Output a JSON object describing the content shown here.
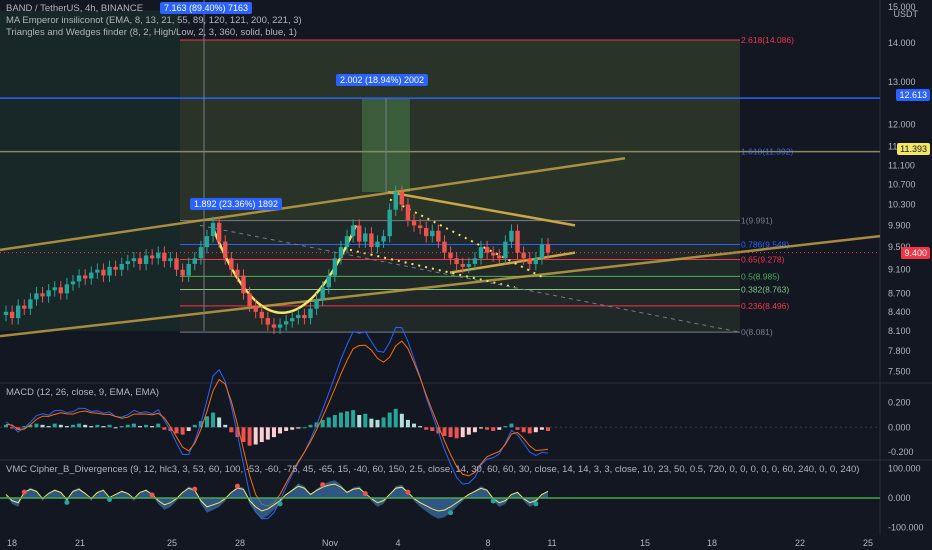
{
  "header": {
    "symbol": "BAND / TetherUS, 4h, BINANCE",
    "indicator_1": "MA Emperor insiliconot (EMA, 8, 13, 21, 55, 89, 120, 121, 200, 221, 3)",
    "indicator_2": "Triangles and Wedges finder (8, 2, High/Low, 2, 3, 360, solid, blue, 1)",
    "currency": "USDT"
  },
  "callouts": {
    "top": "7.163 (89.40%) 7163",
    "middle": "2.002 (18.94%) 2002",
    "left": "1.892 (23.36%) 1892"
  },
  "price_tags": {
    "upper_line": "12.613",
    "mid_line": "11.393",
    "last_price": "9.400"
  },
  "colors": {
    "background": "#131722",
    "up_candle": "#26a69a",
    "down_candle": "#ef5350",
    "blue_line": "#2962ff",
    "trendline": "#c9a646",
    "cup_curve": "#f5e663",
    "price_tag": "#f23645"
  },
  "chart_data": [
    {
      "type": "candlestick",
      "title": "BAND / TetherUS, 4h, BINANCE",
      "y_ticks": [
        "15.000",
        "14.000",
        "13.000",
        "12.000",
        "11.500",
        "11.100",
        "10.700",
        "10.300",
        "9.900",
        "9.500",
        "9.100",
        "8.700",
        "8.400",
        "8.100",
        "7.800",
        "7.500"
      ],
      "x_ticks": [
        "18",
        "21",
        "25",
        "28",
        "Nov",
        "4",
        "8",
        "11",
        "15",
        "18",
        "22",
        "25"
      ],
      "ylim": [
        7.35,
        15.2
      ],
      "scale": "log",
      "close_series": [
        8.4,
        8.3,
        8.5,
        8.45,
        8.6,
        8.7,
        8.65,
        8.75,
        8.8,
        8.7,
        8.85,
        8.9,
        9.0,
        8.95,
        9.05,
        9.1,
        9.0,
        9.15,
        9.1,
        9.2,
        9.25,
        9.3,
        9.2,
        9.35,
        9.3,
        9.4,
        9.25,
        9.3,
        9.1,
        9.0,
        9.2,
        9.3,
        9.5,
        9.7,
        9.95,
        9.6,
        9.3,
        9.1,
        9.0,
        8.7,
        8.5,
        8.4,
        8.3,
        8.2,
        8.15,
        8.2,
        8.25,
        8.3,
        8.35,
        8.3,
        8.45,
        8.6,
        8.8,
        9.0,
        9.3,
        9.5,
        9.7,
        9.9,
        9.6,
        9.75,
        9.5,
        9.6,
        9.7,
        10.2,
        10.55,
        10.3,
        10.0,
        9.9,
        9.85,
        9.7,
        9.8,
        9.6,
        9.4,
        9.3,
        9.2,
        9.15,
        9.2,
        9.3,
        9.5,
        9.4,
        9.35,
        9.3,
        9.6,
        9.8,
        9.4,
        9.3,
        9.2,
        9.3,
        9.55,
        9.4
      ],
      "fib_levels": [
        {
          "label": "2.618(14.086)",
          "value": 14.086,
          "color": "#f23645"
        },
        {
          "label": "1.618(11.392)",
          "value": 11.392,
          "color": "#2962ff"
        },
        {
          "label": "1(9.991)",
          "value": 9.991,
          "color": "#787b86"
        },
        {
          "label": "0.786(9.548)",
          "value": 9.548,
          "color": "#2962ff"
        },
        {
          "label": "0.65(9.278)",
          "value": 9.278,
          "color": "#f23645"
        },
        {
          "label": "0.5(8.985)",
          "value": 8.985,
          "color": "#4caf50"
        },
        {
          "label": "0.382(8.763)",
          "value": 8.763,
          "color": "#81c784"
        },
        {
          "label": "0.236(8.496)",
          "value": 8.496,
          "color": "#f23645"
        },
        {
          "label": "0(8.081)",
          "value": 8.081,
          "color": "#787b86"
        }
      ],
      "horizontal_lines": [
        12.613,
        11.393
      ]
    },
    {
      "type": "macd",
      "title": "MACD (12, 26, close, 9, EMA, EMA)",
      "y_ticks": [
        "0.200",
        "0.000",
        "-0.200"
      ],
      "ylim": [
        -0.25,
        0.32
      ],
      "histogram": [
        0.02,
        -0.01,
        -0.02,
        0.01,
        0.02,
        0.03,
        0.02,
        0.01,
        0.03,
        0.02,
        0.01,
        0.02,
        0.03,
        0.02,
        0.01,
        0.02,
        0.01,
        0.02,
        0.0,
        0.01,
        0.02,
        0.03,
        0.01,
        0.02,
        0.01,
        0.03,
        -0.02,
        -0.03,
        -0.05,
        -0.06,
        -0.03,
        0.02,
        0.05,
        0.09,
        0.12,
        0.08,
        0.02,
        -0.04,
        -0.08,
        -0.12,
        -0.15,
        -0.14,
        -0.12,
        -0.1,
        -0.08,
        -0.05,
        -0.03,
        -0.02,
        -0.01,
        0.0,
        0.02,
        0.04,
        0.06,
        0.08,
        0.1,
        0.12,
        0.13,
        0.14,
        0.1,
        0.11,
        0.07,
        0.06,
        0.08,
        0.12,
        0.15,
        0.11,
        0.06,
        0.03,
        0.01,
        -0.02,
        -0.03,
        -0.05,
        -0.07,
        -0.08,
        -0.09,
        -0.08,
        -0.06,
        -0.04,
        -0.01,
        -0.02,
        -0.03,
        -0.02,
        0.01,
        0.03,
        -0.02,
        -0.04,
        -0.05,
        -0.04,
        -0.02,
        -0.03
      ]
    },
    {
      "type": "oscillator",
      "title": "VMC Cipher_B_Divergences (9, 12, hlc3, 3, 53, 60, 100, -53, -60, -75, 45, -65, 15, -40, 60, 150, 2.5, close, 14, 30, 60, 60, 30, close, 14, 14, 3, 3, close, 10, 23, 50, 0.5, 720, 0, 0, 0, 0, 0, 60, 240, 0, 0, 240)",
      "y_ticks": [
        "100.000",
        "0.000",
        "-100.000"
      ],
      "ylim": [
        -115,
        115
      ],
      "wave": [
        10,
        -20,
        -30,
        20,
        35,
        25,
        -10,
        15,
        30,
        20,
        -15,
        25,
        35,
        15,
        -10,
        20,
        30,
        -5,
        10,
        25,
        15,
        -10,
        20,
        30,
        10,
        -20,
        -40,
        -30,
        -10,
        20,
        40,
        30,
        -20,
        -50,
        -40,
        -30,
        -10,
        20,
        40,
        35,
        -20,
        -50,
        -70,
        -60,
        -40,
        -20,
        10,
        30,
        50,
        40,
        10,
        30,
        45,
        55,
        60,
        45,
        20,
        35,
        40,
        15,
        -10,
        -30,
        -20,
        10,
        40,
        45,
        20,
        -10,
        -30,
        -45,
        -60,
        -70,
        -65,
        -50,
        -30,
        -10,
        10,
        25,
        40,
        30,
        -10,
        -30,
        -20,
        10,
        20,
        -10,
        -30,
        -20,
        10,
        25
      ]
    }
  ]
}
